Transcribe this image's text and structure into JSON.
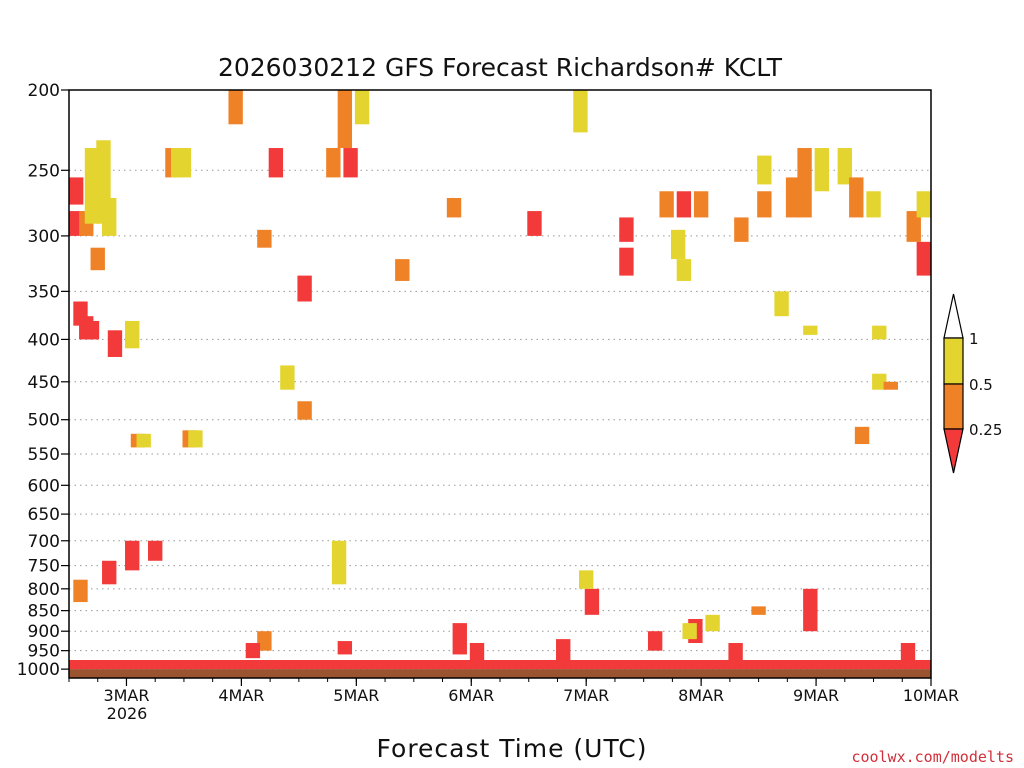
{
  "chart_data": {
    "type": "heatmap",
    "title": "2026030212 GFS Forecast Richardson# KCLT",
    "xlabel": "Forecast Time (UTC)",
    "ylabel": "",
    "y_axis": {
      "scale": "pressure (reversed)",
      "ylim": [
        1025,
        200
      ],
      "ticks": [
        200,
        250,
        300,
        350,
        400,
        450,
        500,
        550,
        600,
        650,
        700,
        750,
        800,
        850,
        900,
        950,
        1000
      ],
      "tick_labels": [
        "200",
        "250",
        "300",
        "350",
        "400",
        "450",
        "500",
        "550",
        "600",
        "650",
        "700",
        "750",
        "800",
        "850",
        "900",
        "950",
        "1000"
      ]
    },
    "x_axis": {
      "range_days": [
        2.5,
        10.0
      ],
      "ticks": [
        3,
        4,
        5,
        6,
        7,
        8,
        9,
        10
      ],
      "tick_labels": [
        "3MAR",
        "4MAR",
        "5MAR",
        "6MAR",
        "7MAR",
        "8MAR",
        "9MAR",
        "10MAR"
      ],
      "year_label": "2026"
    },
    "grid": "dotted horizontal lines at pressure ticks",
    "legend": {
      "placement": "right",
      "bins": [
        {
          "range": "< 0.25",
          "color": "#f23a3a"
        },
        {
          "range": "0.25 - 0.5",
          "color": "#ef8127"
        },
        {
          "range": "0.5 - 1",
          "color": "#e4d42f"
        },
        {
          "range": "> 1",
          "color": "#ffffff"
        }
      ],
      "labels": [
        "1",
        "0.5",
        "0.25"
      ]
    },
    "surface_color": "#9a5530",
    "cells": [
      {
        "day": 2.55,
        "p1": 255,
        "p2": 275,
        "bin": "red"
      },
      {
        "day": 2.55,
        "p1": 280,
        "p2": 300,
        "bin": "red"
      },
      {
        "day": 2.6,
        "p1": 360,
        "p2": 385,
        "bin": "red"
      },
      {
        "day": 2.65,
        "p1": 375,
        "p2": 400,
        "bin": "red"
      },
      {
        "day": 2.65,
        "p1": 280,
        "p2": 300,
        "bin": "orange"
      },
      {
        "day": 2.7,
        "p1": 380,
        "p2": 400,
        "bin": "red"
      },
      {
        "day": 2.75,
        "p1": 310,
        "p2": 330,
        "bin": "orange"
      },
      {
        "day": 2.7,
        "p1": 235,
        "p2": 290,
        "bin": "yellow"
      },
      {
        "day": 2.8,
        "p1": 230,
        "p2": 290,
        "bin": "yellow"
      },
      {
        "day": 2.85,
        "p1": 270,
        "p2": 300,
        "bin": "yellow"
      },
      {
        "day": 2.9,
        "p1": 390,
        "p2": 420,
        "bin": "red"
      },
      {
        "day": 3.05,
        "p1": 380,
        "p2": 410,
        "bin": "yellow"
      },
      {
        "day": 3.1,
        "p1": 520,
        "p2": 540,
        "bin": "orange"
      },
      {
        "day": 3.15,
        "p1": 520,
        "p2": 540,
        "bin": "yellow"
      },
      {
        "day": 3.4,
        "p1": 235,
        "p2": 255,
        "bin": "orange"
      },
      {
        "day": 3.45,
        "p1": 235,
        "p2": 255,
        "bin": "yellow"
      },
      {
        "day": 3.5,
        "p1": 235,
        "p2": 255,
        "bin": "yellow"
      },
      {
        "day": 3.55,
        "p1": 515,
        "p2": 540,
        "bin": "orange"
      },
      {
        "day": 3.6,
        "p1": 515,
        "p2": 540,
        "bin": "yellow"
      },
      {
        "day": 3.95,
        "p1": 200,
        "p2": 220,
        "bin": "orange"
      },
      {
        "day": 4.2,
        "p1": 295,
        "p2": 310,
        "bin": "orange"
      },
      {
        "day": 4.3,
        "p1": 235,
        "p2": 255,
        "bin": "red"
      },
      {
        "day": 4.4,
        "p1": 430,
        "p2": 460,
        "bin": "yellow"
      },
      {
        "day": 4.55,
        "p1": 335,
        "p2": 360,
        "bin": "red"
      },
      {
        "day": 4.55,
        "p1": 475,
        "p2": 500,
        "bin": "orange"
      },
      {
        "day": 4.8,
        "p1": 235,
        "p2": 255,
        "bin": "orange"
      },
      {
        "day": 4.9,
        "p1": 200,
        "p2": 235,
        "bin": "orange"
      },
      {
        "day": 4.95,
        "p1": 235,
        "p2": 255,
        "bin": "red"
      },
      {
        "day": 5.05,
        "p1": 200,
        "p2": 220,
        "bin": "yellow"
      },
      {
        "day": 5.4,
        "p1": 320,
        "p2": 340,
        "bin": "orange"
      },
      {
        "day": 5.85,
        "p1": 270,
        "p2": 285,
        "bin": "orange"
      },
      {
        "day": 6.55,
        "p1": 280,
        "p2": 300,
        "bin": "red"
      },
      {
        "day": 6.95,
        "p1": 200,
        "p2": 225,
        "bin": "yellow"
      },
      {
        "day": 7.35,
        "p1": 285,
        "p2": 305,
        "bin": "red"
      },
      {
        "day": 7.35,
        "p1": 310,
        "p2": 335,
        "bin": "red"
      },
      {
        "day": 7.7,
        "p1": 265,
        "p2": 285,
        "bin": "orange"
      },
      {
        "day": 7.85,
        "p1": 265,
        "p2": 285,
        "bin": "red"
      },
      {
        "day": 8.0,
        "p1": 265,
        "p2": 285,
        "bin": "orange"
      },
      {
        "day": 7.8,
        "p1": 295,
        "p2": 320,
        "bin": "yellow"
      },
      {
        "day": 7.85,
        "p1": 320,
        "p2": 340,
        "bin": "yellow"
      },
      {
        "day": 8.35,
        "p1": 285,
        "p2": 305,
        "bin": "orange"
      },
      {
        "day": 8.55,
        "p1": 265,
        "p2": 285,
        "bin": "orange"
      },
      {
        "day": 8.55,
        "p1": 240,
        "p2": 260,
        "bin": "yellow"
      },
      {
        "day": 8.8,
        "p1": 255,
        "p2": 285,
        "bin": "orange"
      },
      {
        "day": 8.9,
        "p1": 235,
        "p2": 285,
        "bin": "orange"
      },
      {
        "day": 9.05,
        "p1": 235,
        "p2": 265,
        "bin": "yellow"
      },
      {
        "day": 9.25,
        "p1": 235,
        "p2": 260,
        "bin": "yellow"
      },
      {
        "day": 9.35,
        "p1": 255,
        "p2": 285,
        "bin": "orange"
      },
      {
        "day": 9.5,
        "p1": 265,
        "p2": 285,
        "bin": "yellow"
      },
      {
        "day": 9.85,
        "p1": 280,
        "p2": 305,
        "bin": "orange"
      },
      {
        "day": 9.95,
        "p1": 305,
        "p2": 335,
        "bin": "red"
      },
      {
        "day": 10.0,
        "p1": 265,
        "p2": 285,
        "bin": "yellow"
      },
      {
        "day": 8.7,
        "p1": 350,
        "p2": 375,
        "bin": "yellow"
      },
      {
        "day": 8.95,
        "p1": 385,
        "p2": 395,
        "bin": "yellow"
      },
      {
        "day": 9.55,
        "p1": 385,
        "p2": 400,
        "bin": "yellow"
      },
      {
        "day": 9.55,
        "p1": 440,
        "p2": 460,
        "bin": "yellow"
      },
      {
        "day": 9.65,
        "p1": 450,
        "p2": 460,
        "bin": "orange"
      },
      {
        "day": 9.4,
        "p1": 510,
        "p2": 535,
        "bin": "orange"
      },
      {
        "day": 2.6,
        "p1": 780,
        "p2": 830,
        "bin": "orange"
      },
      {
        "day": 2.85,
        "p1": 740,
        "p2": 790,
        "bin": "red"
      },
      {
        "day": 3.05,
        "p1": 700,
        "p2": 760,
        "bin": "red"
      },
      {
        "day": 3.25,
        "p1": 700,
        "p2": 740,
        "bin": "red"
      },
      {
        "day": 4.2,
        "p1": 900,
        "p2": 950,
        "bin": "orange"
      },
      {
        "day": 4.1,
        "p1": 930,
        "p2": 970,
        "bin": "red"
      },
      {
        "day": 4.9,
        "p1": 925,
        "p2": 960,
        "bin": "red"
      },
      {
        "day": 5.9,
        "p1": 880,
        "p2": 960,
        "bin": "red"
      },
      {
        "day": 6.05,
        "p1": 930,
        "p2": 980,
        "bin": "red"
      },
      {
        "day": 6.8,
        "p1": 920,
        "p2": 985,
        "bin": "red"
      },
      {
        "day": 7.05,
        "p1": 800,
        "p2": 860,
        "bin": "red"
      },
      {
        "day": 7.6,
        "p1": 900,
        "p2": 950,
        "bin": "red"
      },
      {
        "day": 7.95,
        "p1": 870,
        "p2": 930,
        "bin": "red"
      },
      {
        "day": 8.95,
        "p1": 800,
        "p2": 900,
        "bin": "red"
      },
      {
        "day": 8.3,
        "p1": 930,
        "p2": 980,
        "bin": "red"
      },
      {
        "day": 9.8,
        "p1": 930,
        "p2": 980,
        "bin": "red"
      },
      {
        "day": 7.0,
        "p1": 760,
        "p2": 800,
        "bin": "yellow"
      },
      {
        "day": 7.9,
        "p1": 880,
        "p2": 920,
        "bin": "yellow"
      },
      {
        "day": 8.1,
        "p1": 860,
        "p2": 900,
        "bin": "yellow"
      },
      {
        "day": 8.5,
        "p1": 840,
        "p2": 860,
        "bin": "orange"
      },
      {
        "day": 4.85,
        "p1": 700,
        "p2": 790,
        "bin": "yellow"
      }
    ]
  },
  "watermark": "coolwx.com/modelts"
}
